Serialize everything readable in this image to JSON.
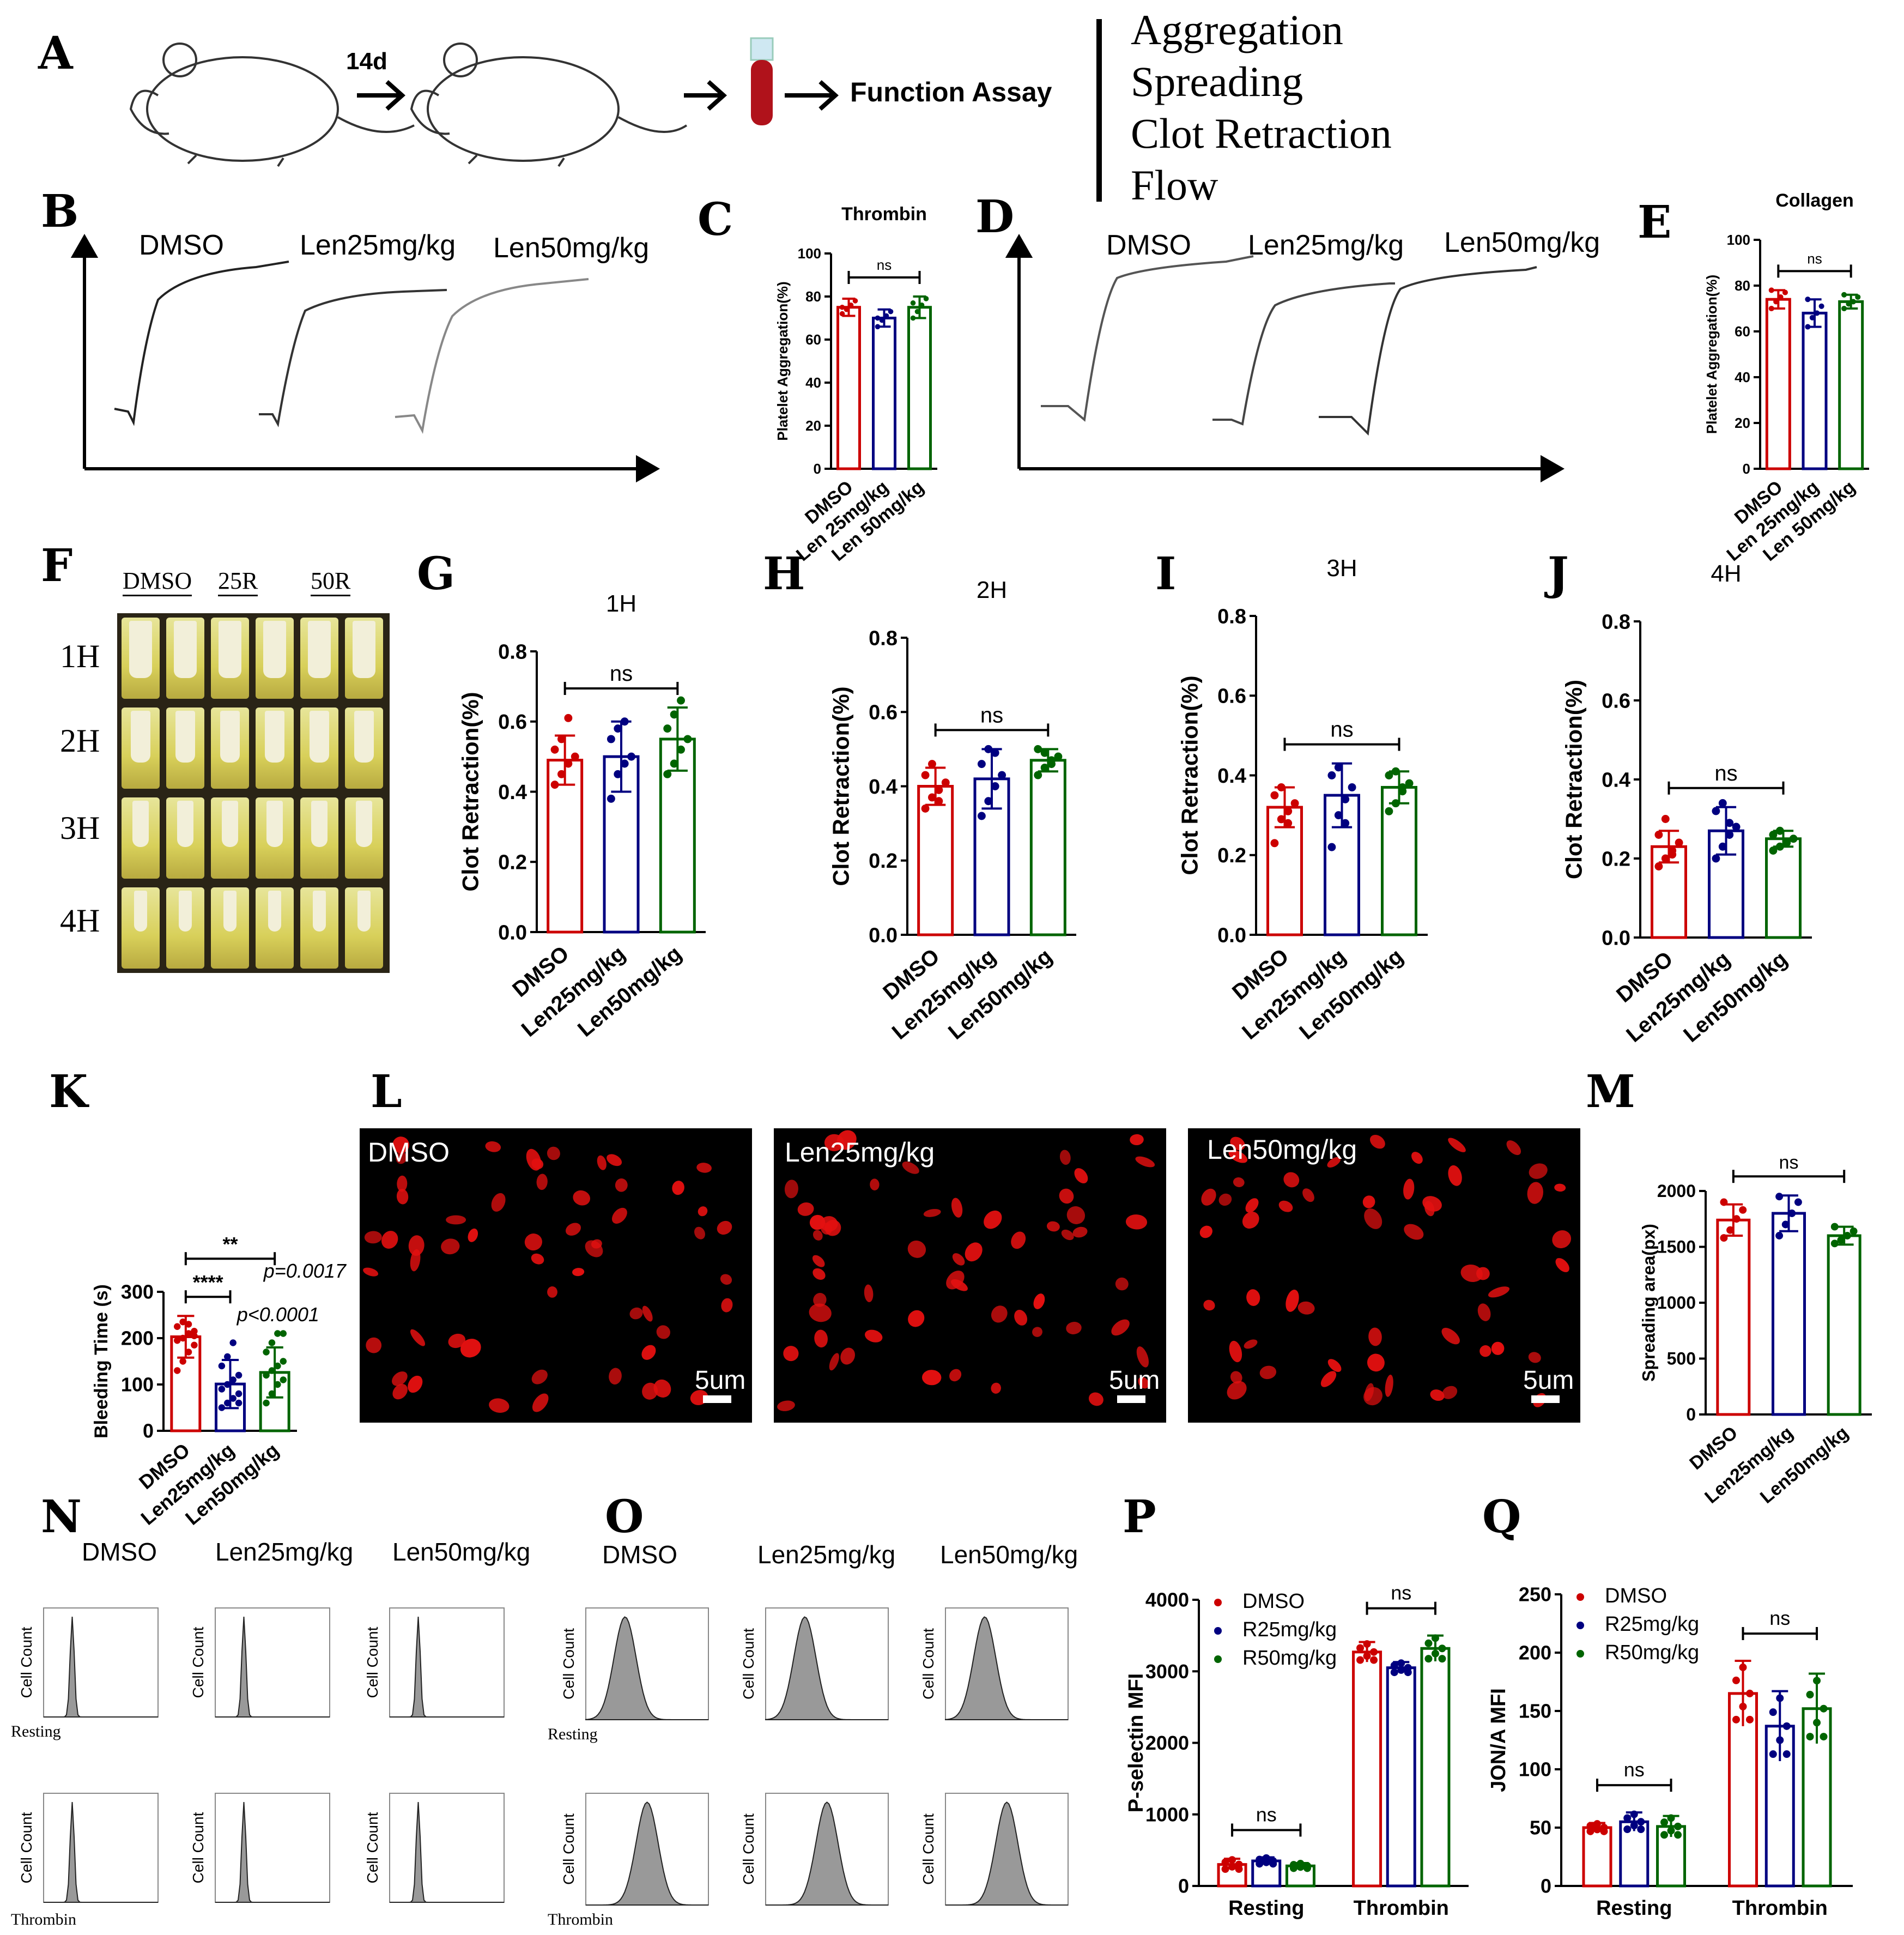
{
  "panel_letters": [
    "A",
    "B",
    "C",
    "D",
    "E",
    "F",
    "G",
    "H",
    "I",
    "J",
    "K",
    "L",
    "M",
    "N",
    "O",
    "P",
    "Q"
  ],
  "panelA": {
    "arrow_label": "14d",
    "assay_label": "Function Assay",
    "assays": [
      "Aggregation",
      "Spreading",
      "Clot Retraction",
      "Flow"
    ]
  },
  "panelB": {
    "trace_labels": [
      "DMSO",
      "Len25mg/kg",
      "Len50mg/kg"
    ]
  },
  "panelD": {
    "trace_labels": [
      "DMSO",
      "Len25mg/kg",
      "Len50mg/kg"
    ]
  },
  "panelF": {
    "column_headers": [
      "DMSO",
      "25R",
      "50R"
    ],
    "row_labels": [
      "1H",
      "2H",
      "3H",
      "4H"
    ]
  },
  "panelL": {
    "image_labels": [
      "DMSO",
      "Len25mg/kg",
      "Len50mg/kg"
    ],
    "scale_bar": "5um"
  },
  "panelN": {
    "column_headers": [
      "DMSO",
      "Len25mg/kg",
      "Len50mg/kg"
    ],
    "row_labels": [
      "Resting",
      "Thrombin"
    ],
    "ylabel": "Cell Count"
  },
  "panelO": {
    "column_headers": [
      "DMSO",
      "Len25mg/kg",
      "Len50mg/kg"
    ],
    "row_labels": [
      "Resting",
      "Thrombin"
    ],
    "ylabel": "Cell Count"
  },
  "colors": {
    "dmso": "#cc0000",
    "len25": "#000080",
    "len50": "#006400",
    "photo_bg": "#000000",
    "cell": "#e31010"
  },
  "chart_data": [
    {
      "id": "C",
      "type": "bar",
      "title": "Thrombin",
      "ylabel": "Platelet Aggregation(%)",
      "categories": [
        "DMSO",
        "Len 25mg/kg",
        "Len 50mg/kg"
      ],
      "values": [
        75,
        70,
        75
      ],
      "errors": [
        4,
        4,
        5
      ],
      "points": [
        [
          72,
          74,
          76,
          78,
          75
        ],
        [
          66,
          69,
          71,
          73,
          70
        ],
        [
          70,
          73,
          76,
          79,
          77
        ]
      ],
      "ylim": [
        0,
        100
      ],
      "yticks": [
        0,
        20,
        40,
        60,
        80,
        100
      ],
      "sig": [
        {
          "label": "ns",
          "from": 0,
          "to": 2
        }
      ]
    },
    {
      "id": "E",
      "type": "bar",
      "title": "Collagen",
      "ylabel": "Platelet Aggregation(%)",
      "categories": [
        "DMSO",
        "Len 25mg/kg",
        "Len 50mg/kg"
      ],
      "values": [
        74,
        68,
        73
      ],
      "errors": [
        4,
        6,
        3
      ],
      "points": [
        [
          70,
          73,
          75,
          77,
          78
        ],
        [
          62,
          66,
          68,
          71,
          74
        ],
        [
          70,
          72,
          73,
          75,
          76
        ]
      ],
      "ylim": [
        0,
        100
      ],
      "yticks": [
        0,
        20,
        40,
        60,
        80,
        100
      ],
      "sig": [
        {
          "label": "ns",
          "from": 0,
          "to": 2
        }
      ]
    },
    {
      "id": "G",
      "type": "bar",
      "title": "1H",
      "ylabel": "Clot Retraction(%)",
      "categories": [
        "DMSO",
        "Len25mg/kg",
        "Len50mg/kg"
      ],
      "values": [
        0.49,
        0.5,
        0.55
      ],
      "errors": [
        0.07,
        0.1,
        0.09
      ],
      "points": [
        [
          0.42,
          0.45,
          0.48,
          0.5,
          0.52,
          0.55,
          0.61
        ],
        [
          0.38,
          0.45,
          0.48,
          0.5,
          0.55,
          0.58,
          0.6
        ],
        [
          0.45,
          0.48,
          0.52,
          0.55,
          0.58,
          0.62,
          0.66
        ]
      ],
      "ylim": [
        0,
        0.8
      ],
      "yticks": [
        0,
        0.2,
        0.4,
        0.6,
        0.8
      ],
      "sig": [
        {
          "label": "ns",
          "from": 0,
          "to": 2
        }
      ]
    },
    {
      "id": "H",
      "type": "bar",
      "title": "2H",
      "ylabel": "Clot Retraction(%)",
      "categories": [
        "DMSO",
        "Len25mg/kg",
        "Len50mg/kg"
      ],
      "values": [
        0.4,
        0.42,
        0.47
      ],
      "errors": [
        0.05,
        0.08,
        0.03
      ],
      "points": [
        [
          0.34,
          0.37,
          0.39,
          0.41,
          0.43,
          0.46,
          0.36
        ],
        [
          0.32,
          0.36,
          0.4,
          0.43,
          0.46,
          0.5,
          0.49
        ],
        [
          0.43,
          0.45,
          0.47,
          0.48,
          0.5,
          0.49,
          0.46
        ]
      ],
      "ylim": [
        0,
        0.8
      ],
      "yticks": [
        0,
        0.2,
        0.4,
        0.6,
        0.8
      ],
      "sig": [
        {
          "label": "ns",
          "from": 0,
          "to": 2
        }
      ]
    },
    {
      "id": "I",
      "type": "bar",
      "title": "3H",
      "ylabel": "Clot Retraction(%)",
      "categories": [
        "DMSO",
        "Len25mg/kg",
        "Len50mg/kg"
      ],
      "values": [
        0.32,
        0.35,
        0.37
      ],
      "errors": [
        0.05,
        0.08,
        0.04
      ],
      "points": [
        [
          0.23,
          0.29,
          0.31,
          0.33,
          0.35,
          0.37,
          0.28
        ],
        [
          0.22,
          0.3,
          0.34,
          0.37,
          0.4,
          0.42,
          0.28
        ],
        [
          0.31,
          0.33,
          0.36,
          0.38,
          0.4,
          0.41,
          0.37
        ]
      ],
      "ylim": [
        0,
        0.8
      ],
      "yticks": [
        0,
        0.2,
        0.4,
        0.6,
        0.8
      ],
      "sig": [
        {
          "label": "ns",
          "from": 0,
          "to": 2
        }
      ]
    },
    {
      "id": "J",
      "type": "bar",
      "title": "4H",
      "ylabel": "Clot Retraction(%)",
      "categories": [
        "DMSO",
        "Len25mg/kg",
        "Len50mg/kg"
      ],
      "values": [
        0.23,
        0.27,
        0.25
      ],
      "errors": [
        0.04,
        0.06,
        0.02
      ],
      "points": [
        [
          0.18,
          0.2,
          0.22,
          0.24,
          0.26,
          0.3,
          0.21
        ],
        [
          0.2,
          0.23,
          0.26,
          0.28,
          0.32,
          0.34,
          0.29
        ],
        [
          0.22,
          0.23,
          0.24,
          0.25,
          0.26,
          0.27,
          0.24
        ]
      ],
      "ylim": [
        0,
        0.8
      ],
      "yticks": [
        0,
        0.2,
        0.4,
        0.6,
        0.8
      ],
      "sig": [
        {
          "label": "ns",
          "from": 0,
          "to": 2
        }
      ]
    },
    {
      "id": "K",
      "type": "bar",
      "ylabel": "Bleeding Time (s)",
      "categories": [
        "DMSO",
        "Len25mg/kg",
        "Len50mg/kg"
      ],
      "values": [
        203,
        101,
        126
      ],
      "errors": [
        45,
        52,
        54
      ],
      "points": [
        [
          130,
          150,
          170,
          185,
          195,
          200,
          210,
          215,
          225,
          235,
          230,
          205
        ],
        [
          50,
          60,
          70,
          80,
          90,
          100,
          110,
          120,
          140,
          160,
          190,
          60
        ],
        [
          60,
          80,
          100,
          110,
          120,
          130,
          140,
          150,
          170,
          190,
          210,
          210
        ]
      ],
      "ylim": [
        0,
        300
      ],
      "yticks": [
        0,
        100,
        200,
        300
      ],
      "sig": [
        {
          "label": "**",
          "from": 0,
          "to": 2
        },
        {
          "label": "****",
          "from": 0,
          "to": 1
        }
      ],
      "annotations": [
        "p=0.0017",
        "p<0.0001"
      ]
    },
    {
      "id": "M",
      "type": "bar",
      "ylabel": "Spreading area(px)",
      "categories": [
        "DMSO",
        "Len25mg/kg",
        "Len50mg/kg"
      ],
      "values": [
        1740,
        1800,
        1600
      ],
      "errors": [
        140,
        160,
        80
      ],
      "points": [
        [
          1580,
          1650,
          1750,
          1830,
          1900
        ],
        [
          1600,
          1700,
          1800,
          1900,
          1950
        ],
        [
          1530,
          1560,
          1600,
          1640,
          1680
        ]
      ],
      "ylim": [
        0,
        2000
      ],
      "yticks": [
        0,
        500,
        1000,
        1500,
        2000
      ],
      "sig": [
        {
          "label": "ns",
          "from": 0,
          "to": 2
        }
      ]
    },
    {
      "id": "P",
      "type": "bar",
      "ylabel": "P-selectin MFI",
      "groups": [
        "Resting",
        "Thrombin"
      ],
      "series": [
        {
          "name": "DMSO",
          "values": [
            300,
            3270
          ],
          "errors": [
            80,
            140
          ]
        },
        {
          "name": "R25mg/kg",
          "values": [
            350,
            3050
          ],
          "errors": [
            50,
            80
          ]
        },
        {
          "name": "R50mg/kg",
          "values": [
            280,
            3320
          ],
          "errors": [
            40,
            180
          ]
        }
      ],
      "ylim": [
        0,
        4000
      ],
      "yticks": [
        0,
        1000,
        2000,
        3000,
        4000
      ],
      "sig": [
        {
          "label": "ns",
          "group": 0
        },
        {
          "label": "ns",
          "group": 1
        }
      ]
    },
    {
      "id": "Q",
      "type": "bar",
      "ylabel": "JON/A MFI",
      "groups": [
        "Resting",
        "Thrombin"
      ],
      "series": [
        {
          "name": "DMSO",
          "values": [
            50,
            165
          ],
          "errors": [
            4,
            28
          ]
        },
        {
          "name": "R25mg/kg",
          "values": [
            55,
            137
          ],
          "errors": [
            8,
            30
          ]
        },
        {
          "name": "R50mg/kg",
          "values": [
            51,
            152
          ],
          "errors": [
            9,
            30
          ]
        }
      ],
      "ylim": [
        0,
        250
      ],
      "yticks": [
        0,
        50,
        100,
        150,
        200,
        250
      ],
      "sig": [
        {
          "label": "ns",
          "group": 0
        },
        {
          "label": "ns",
          "group": 1
        }
      ]
    }
  ]
}
